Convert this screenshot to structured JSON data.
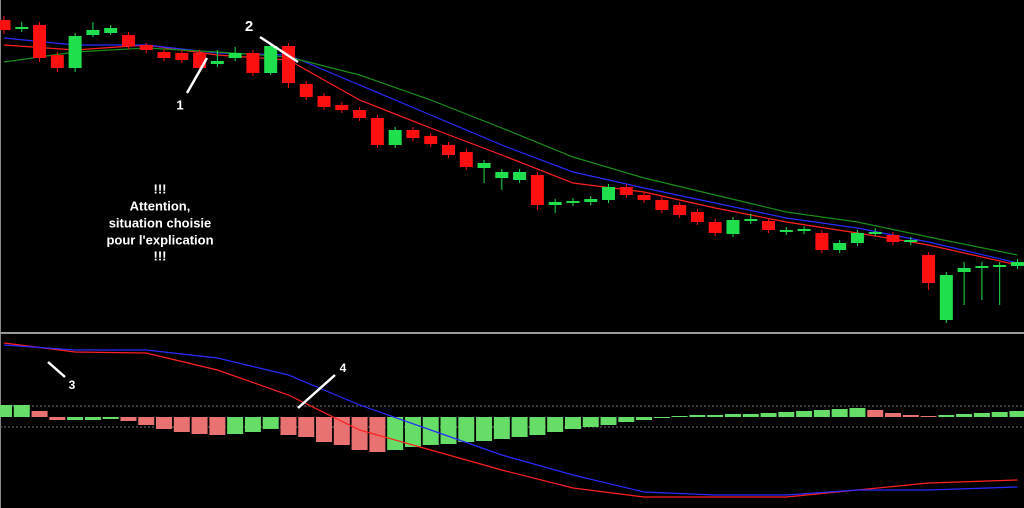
{
  "chart_data": [
    {
      "type": "candlestick",
      "up_color": "#1fe04c",
      "down_color": "#ff1010",
      "ylim": [
        0,
        333
      ],
      "open": [
        313,
        306,
        308,
        278,
        265,
        298,
        300,
        298,
        288,
        281,
        280,
        280,
        269,
        275,
        280,
        260,
        287,
        249,
        237,
        228,
        223,
        215,
        188,
        203,
        197,
        188,
        181,
        165,
        155,
        153,
        158,
        128,
        130,
        131,
        133,
        146,
        138,
        133,
        128,
        121,
        111,
        99,
        112,
        112,
        101,
        102,
        100,
        83,
        90,
        100,
        98,
        91,
        78,
        13,
        61,
        65,
        66,
        67
      ],
      "high": [
        317,
        311,
        311,
        281,
        300,
        311,
        308,
        301,
        290,
        284,
        283,
        283,
        283,
        286,
        283,
        290,
        290,
        252,
        240,
        231,
        226,
        218,
        206,
        206,
        200,
        191,
        184,
        173,
        164,
        164,
        161,
        134,
        135,
        137,
        149,
        149,
        141,
        136,
        131,
        124,
        114,
        116,
        119,
        115,
        106,
        107,
        103,
        93,
        103,
        105,
        101,
        96,
        81,
        61,
        71,
        71,
        71,
        74
      ],
      "low": [
        299,
        301,
        271,
        261,
        261,
        296,
        298,
        284,
        280,
        272,
        270,
        262,
        266,
        272,
        257,
        258,
        245,
        233,
        223,
        220,
        212,
        185,
        185,
        192,
        186,
        175,
        163,
        150,
        143,
        150,
        123,
        120,
        127,
        128,
        130,
        135,
        130,
        120,
        115,
        108,
        97,
        96,
        109,
        100,
        98,
        99,
        80,
        80,
        87,
        97,
        88,
        88,
        43,
        10,
        28,
        33,
        28,
        64
      ],
      "close": [
        303,
        306,
        275,
        265,
        297,
        303,
        305,
        287,
        283,
        275,
        273,
        265,
        272,
        280,
        260,
        287,
        250,
        236,
        226,
        223,
        215,
        188,
        203,
        195,
        189,
        178,
        166,
        170,
        161,
        161,
        128,
        131,
        132,
        134,
        146,
        138,
        133,
        123,
        118,
        111,
        100,
        113,
        114,
        103,
        103,
        104,
        83,
        90,
        100,
        101,
        91,
        93,
        50,
        58,
        65,
        67,
        68,
        71
      ],
      "series": [
        {
          "color": "#ff2020",
          "x": [
            0,
            4,
            8,
            12,
            16,
            20,
            24,
            28,
            32,
            36,
            40,
            44,
            48,
            52,
            57
          ],
          "values": [
            288,
            283,
            288,
            278,
            273,
            233,
            205,
            178,
            150,
            141,
            125,
            111,
            100,
            88,
            68
          ]
        },
        {
          "color": "#2a2aff",
          "x": [
            0,
            4,
            8,
            12,
            16,
            20,
            24,
            28,
            32,
            36,
            40,
            44,
            48,
            52,
            57
          ],
          "values": [
            295,
            288,
            288,
            280,
            278,
            248,
            218,
            188,
            161,
            145,
            130,
            115,
            105,
            91,
            70
          ]
        },
        {
          "color": "#1a8c1a",
          "x": [
            0,
            4,
            8,
            12,
            16,
            20,
            24,
            28,
            32,
            36,
            40,
            44,
            48,
            52,
            57
          ],
          "values": [
            271,
            281,
            285,
            281,
            276,
            258,
            233,
            205,
            176,
            155,
            138,
            121,
            111,
            96,
            78
          ]
        }
      ]
    },
    {
      "type": "histogram_oscillator",
      "up_color": "#66dd66",
      "down_color": "#e87272",
      "ylim": [
        -91,
        82
      ],
      "levels": [
        11,
        -10
      ],
      "values": [
        12,
        12,
        6,
        -3,
        -3,
        -3,
        -2,
        -4,
        -8,
        -12,
        -15,
        -17,
        -18,
        -17,
        -15,
        -12,
        -18,
        -20,
        -25,
        -28,
        -33,
        -35,
        -33,
        -30,
        -28,
        -27,
        -25,
        -24,
        -22,
        -20,
        -18,
        -15,
        -12,
        -10,
        -8,
        -5,
        -3,
        -1,
        1,
        2,
        2,
        3,
        3,
        4,
        5,
        6,
        7,
        8,
        9,
        7,
        4,
        2,
        1,
        2,
        3,
        4,
        5,
        6
      ],
      "series": [
        {
          "color": "#ff2020",
          "x": [
            0,
            4,
            8,
            12,
            16,
            20,
            24,
            28,
            32,
            36,
            40,
            44,
            48,
            52,
            57
          ],
          "values": [
            74,
            65,
            64,
            47,
            22,
            -13,
            -33,
            -53,
            -71,
            -80,
            -80,
            -80,
            -73,
            -66,
            -63
          ]
        },
        {
          "color": "#2a2aff",
          "x": [
            0,
            4,
            8,
            12,
            16,
            20,
            24,
            28,
            32,
            36,
            40,
            44,
            48,
            52,
            57
          ],
          "values": [
            72,
            67,
            67,
            59,
            42,
            12,
            -13,
            -38,
            -58,
            -75,
            -78,
            -78,
            -73,
            -73,
            -70
          ]
        }
      ]
    }
  ],
  "annotations": [
    "1",
    "2",
    "3",
    "4"
  ],
  "note": [
    "!!!",
    "Attention,",
    "situation choisie",
    "pour l'explication",
    "!!!"
  ]
}
